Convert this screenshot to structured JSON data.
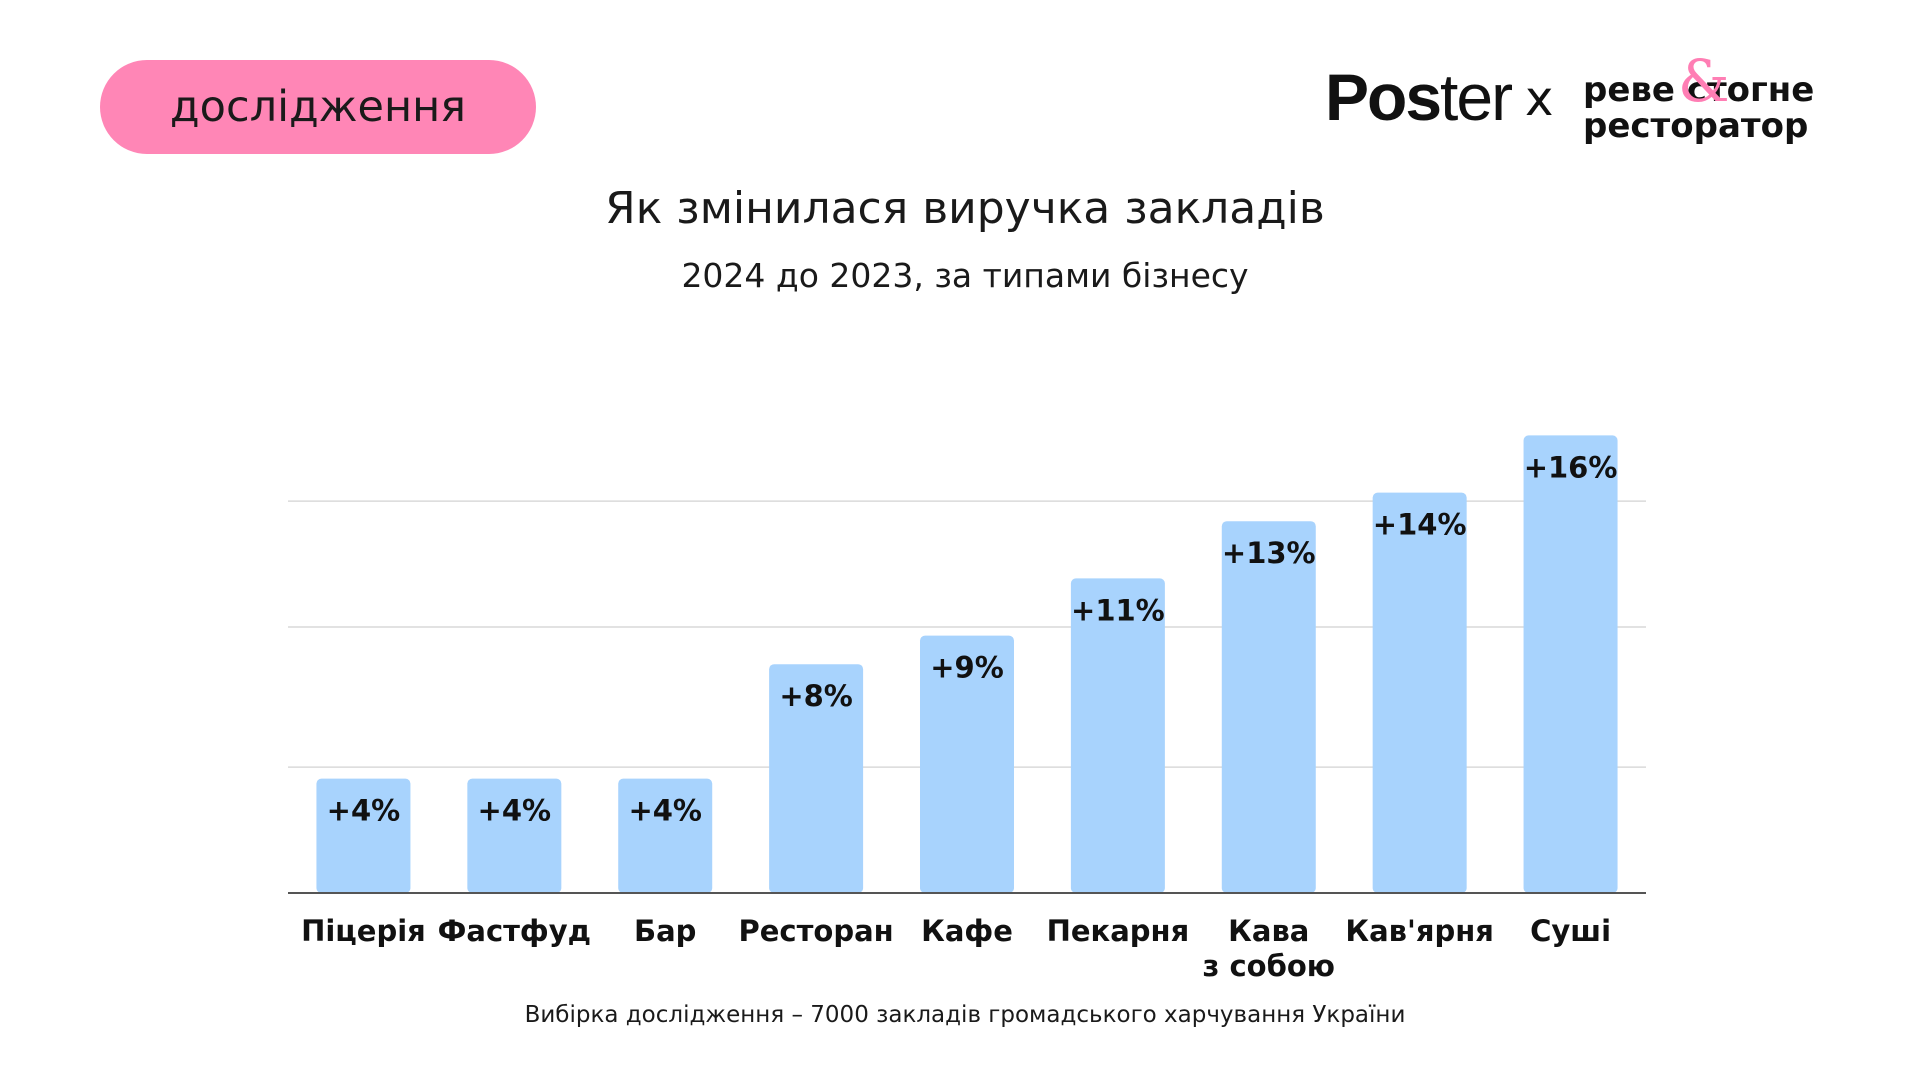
{
  "badge": {
    "label": "дослідження"
  },
  "logos": {
    "poster_bold": "Pos",
    "poster_light": "ter",
    "separator": "x",
    "partner_line1": "реве стогне",
    "partner_line2": "ресторатор",
    "partner_amp": "&"
  },
  "colors": {
    "badge_bg": "#ff86b6",
    "bar": "#a8d3fd",
    "grid": "#d9d9d9",
    "axis": "#555555",
    "accent_amp": "#ff7eb4"
  },
  "chart_data": {
    "type": "bar",
    "title": "Як змінилася виручка закладів",
    "subtitle": "2024 до 2023, за типами бізнесу",
    "categories": [
      [
        "Піцерія"
      ],
      [
        "Фастфуд"
      ],
      [
        "Бар"
      ],
      [
        "Ресторан"
      ],
      [
        "Кафе"
      ],
      [
        "Пекарня"
      ],
      [
        "Кава",
        "з собою"
      ],
      [
        "Кав'ярня"
      ],
      [
        "Суші"
      ]
    ],
    "values": [
      4,
      4,
      4,
      8,
      9,
      11,
      13,
      14,
      16
    ],
    "data_labels": [
      "+4%",
      "+4%",
      "+4%",
      "+8%",
      "+9%",
      "+11%",
      "+13%",
      "+14%",
      "+16%"
    ],
    "ylim": [
      0,
      16
    ],
    "grid": true,
    "xlabel": "",
    "ylabel": ""
  },
  "footnote": "Вибірка дослідження – 7000 закладів громадського харчування України"
}
